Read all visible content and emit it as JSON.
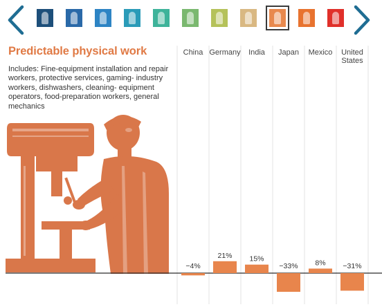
{
  "nav": {
    "prev_icon": "chevron-left-icon",
    "next_icon": "chevron-right-icon",
    "arrow_color": "#1f6d93",
    "thumbnails": [
      {
        "icon": "occupation-icon",
        "color": "#1d4f7a"
      },
      {
        "icon": "occupation-icon",
        "color": "#2a69a8"
      },
      {
        "icon": "occupation-icon",
        "color": "#2d84c4"
      },
      {
        "icon": "occupation-icon",
        "color": "#2a9bb8"
      },
      {
        "icon": "occupation-icon",
        "color": "#3eb39a"
      },
      {
        "icon": "occupation-icon",
        "color": "#7ab86f"
      },
      {
        "icon": "occupation-icon",
        "color": "#b5c25a"
      },
      {
        "icon": "occupation-icon",
        "color": "#d9b882"
      },
      {
        "icon": "occupation-icon",
        "color": "#e8894e",
        "selected": true
      },
      {
        "icon": "occupation-icon",
        "color": "#e8732f"
      },
      {
        "icon": "occupation-icon",
        "color": "#e0302a"
      }
    ]
  },
  "panel": {
    "title": "Predictable physical work",
    "description": "Includes: Fine-equipment installation and repair workers, protective services, gaming- industry workers, dishwashers, cleaning- equipment operators, food-preparation workers, general mechanics",
    "illustration_icon": "machinist-at-drill-press-icon",
    "accent_color": "#e07a45"
  },
  "chart_data": {
    "type": "bar",
    "categories": [
      "China",
      "Germany",
      "India",
      "Japan",
      "Mexico",
      "United States"
    ],
    "values": [
      -4,
      21,
      15,
      -33,
      8,
      -31
    ],
    "value_labels": [
      "−4%",
      "21%",
      "15%",
      "−33%",
      "8%",
      "−31%"
    ],
    "title": "Predictable physical work",
    "xlabel": "",
    "ylabel": "",
    "ylim": [
      -40,
      40
    ],
    "grid": false,
    "legend": "none",
    "bar_color": "#e8854c"
  }
}
